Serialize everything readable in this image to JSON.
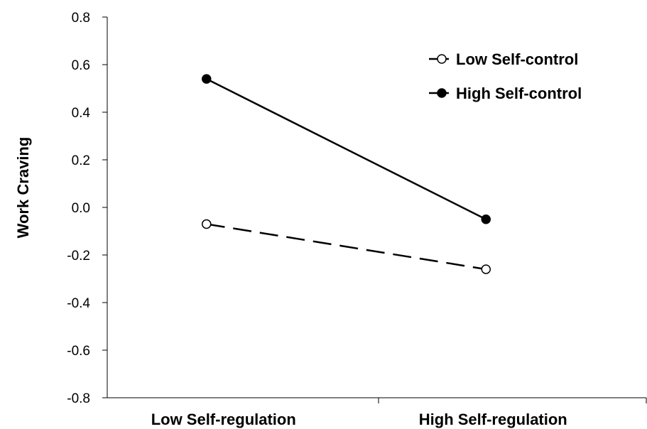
{
  "chart_data": {
    "type": "line",
    "title": "",
    "xlabel": "",
    "ylabel": "Work Craving",
    "categories": [
      "Low Self-regulation",
      "High Self-regulation"
    ],
    "ylim": [
      -0.8,
      0.8
    ],
    "yticks": [
      "0.8",
      "0.6",
      "0.4",
      "0.2",
      "0.0",
      "-0.2",
      "-0.4",
      "-0.6",
      "-0.8"
    ],
    "ytick_values": [
      0.8,
      0.6,
      0.4,
      0.2,
      0.0,
      -0.2,
      -0.4,
      -0.6,
      -0.8
    ],
    "grid": false,
    "legend_position": "top-right",
    "series": [
      {
        "name": "Low Self-control",
        "values": [
          -0.07,
          -0.26
        ],
        "line_style": "dashed",
        "marker": "open-circle",
        "color": "#000000"
      },
      {
        "name": "High Self-control",
        "values": [
          0.54,
          -0.05
        ],
        "line_style": "solid",
        "marker": "filled-circle",
        "color": "#000000"
      }
    ]
  }
}
